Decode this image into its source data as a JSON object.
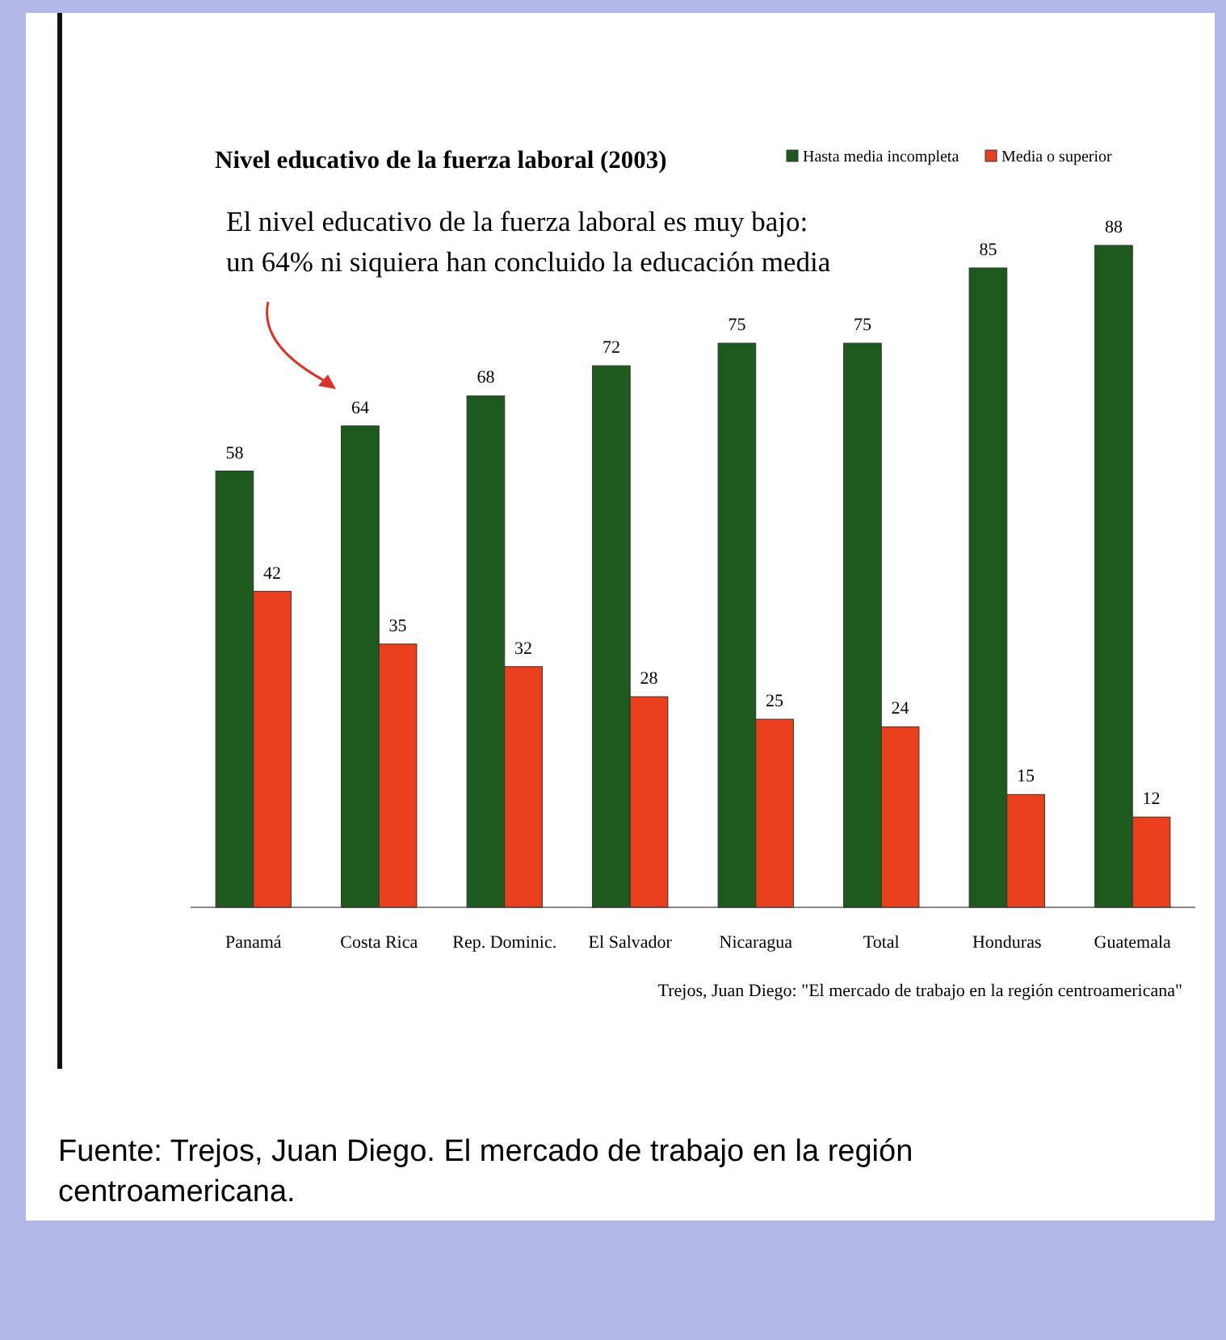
{
  "chart_data": {
    "type": "bar",
    "title": "Nivel educativo de la fuerza laboral (2003)",
    "categories": [
      "Panamá",
      "Costa Rica",
      "Rep. Dominic.",
      "El Salvador",
      "Nicaragua",
      "Total",
      "Honduras",
      "Guatemala"
    ],
    "series": [
      {
        "name": "Hasta media incompleta",
        "color": "#1e5a1e",
        "values": [
          58,
          64,
          68,
          72,
          75,
          75,
          85,
          88
        ]
      },
      {
        "name": "Media o superior",
        "color": "#e8401c",
        "values": [
          42,
          35,
          32,
          28,
          25,
          24,
          15,
          12
        ]
      }
    ],
    "data_labels": true,
    "legend": "top right",
    "annotations": [
      "El nivel educativo de la fuerza laboral es muy bajo: un 64% ni siquiera han concluido la educación media",
      "Trejos, Juan Diego: \"El mercado de trabajo en la región centroamericana\"",
      "Fuente: Trejos, Juan Diego. El mercado de trabajo en la región centroamericana."
    ]
  }
}
